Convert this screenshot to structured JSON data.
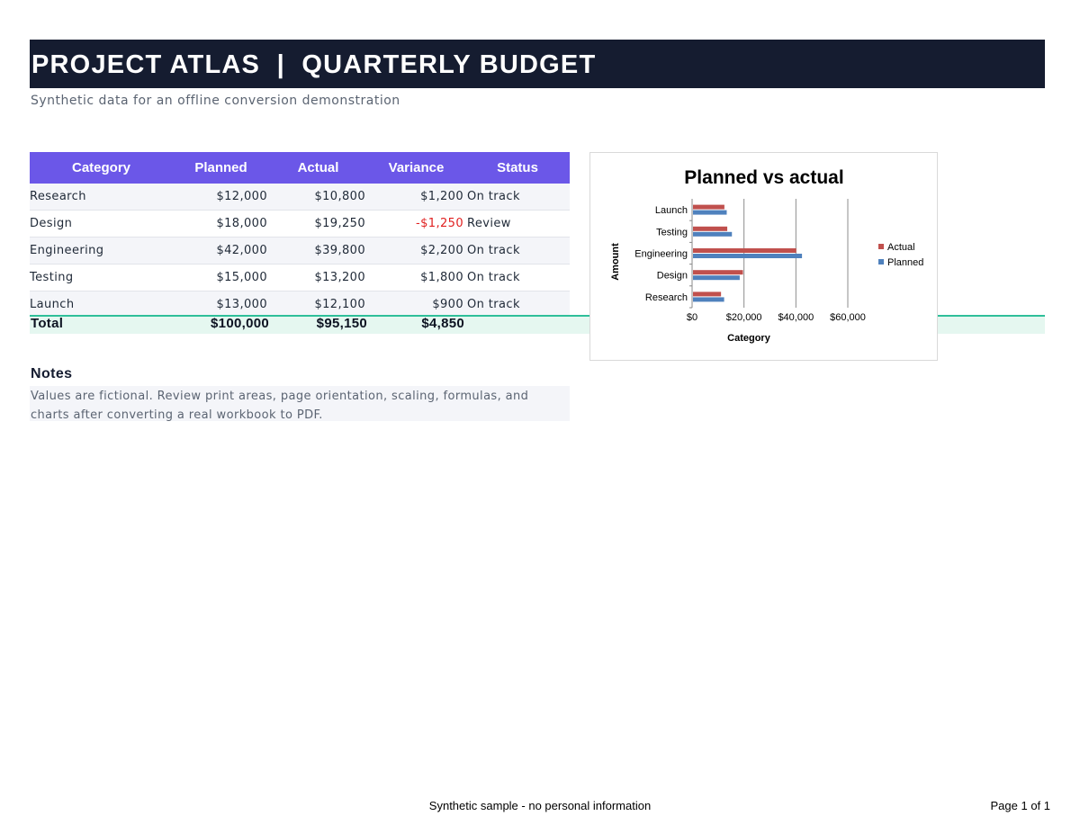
{
  "header": {
    "title": "PROJECT ATLAS  |  QUARTERLY BUDGET",
    "subtitle": "Synthetic data for an offline conversion demonstration"
  },
  "table": {
    "columns": [
      "Category",
      "Planned",
      "Actual",
      "Variance",
      "Status"
    ],
    "rows": [
      {
        "category": "Research",
        "planned": "$12,000",
        "actual": "$10,800",
        "variance": "$1,200",
        "status": "On track"
      },
      {
        "category": "Design",
        "planned": "$18,000",
        "actual": "$19,250",
        "variance": "-$1,250",
        "status": "Review"
      },
      {
        "category": "Engineering",
        "planned": "$42,000",
        "actual": "$39,800",
        "variance": "$2,200",
        "status": "On track"
      },
      {
        "category": "Testing",
        "planned": "$15,000",
        "actual": "$13,200",
        "variance": "$1,800",
        "status": "On track"
      },
      {
        "category": "Launch",
        "planned": "$13,000",
        "actual": "$12,100",
        "variance": "$900",
        "status": "On track"
      }
    ],
    "total": {
      "label": "Total",
      "planned": "$100,000",
      "actual": "$95,150",
      "variance": "$4,850"
    }
  },
  "notes": {
    "title": "Notes",
    "body": "Values are fictional. Review print areas, page orientation, scaling, formulas, and charts after converting a real workbook to PDF."
  },
  "chart_data": {
    "type": "bar",
    "orientation": "horizontal",
    "title": "Planned vs actual",
    "xlabel": "Category",
    "ylabel": "Amount",
    "categories": [
      "Launch",
      "Testing",
      "Engineering",
      "Design",
      "Research"
    ],
    "series": [
      {
        "name": "Actual",
        "values": [
          12100,
          13200,
          39800,
          19250,
          10800
        ],
        "color": "#c0504d"
      },
      {
        "name": "Planned",
        "values": [
          13000,
          15000,
          42000,
          18000,
          12000
        ],
        "color": "#4f81bd"
      }
    ],
    "xlim": [
      0,
      60000
    ],
    "xticks": [
      "$0",
      "$20,000",
      "$40,000",
      "$60,000"
    ],
    "grid": true,
    "legend": "right"
  },
  "footer": {
    "center": "Synthetic sample - no personal information",
    "page": "Page 1 of 1"
  }
}
